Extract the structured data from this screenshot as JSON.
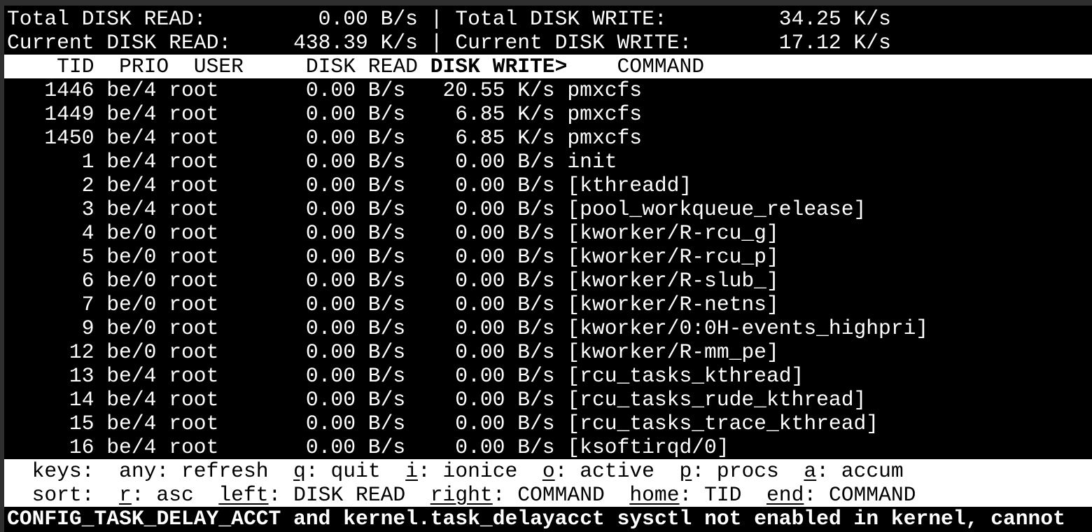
{
  "summary": {
    "total_read_label": "Total DISK READ:",
    "total_read": "0.00 B/s",
    "total_write_label": "Total DISK WRITE:",
    "total_write": "34.25 K/s",
    "current_read_label": "Current DISK READ:",
    "current_read": "438.39 K/s",
    "current_write_label": "Current DISK WRITE:",
    "current_write": "17.12 K/s",
    "separator": "|"
  },
  "columns": {
    "tid": "TID",
    "prio": "PRIO",
    "user": "USER",
    "disk_read": "DISK READ",
    "disk_write": "DISK WRITE>",
    "command": "COMMAND"
  },
  "sorted_column": "disk_write",
  "rows": [
    {
      "tid": "1446",
      "prio": "be/4",
      "user": "root",
      "disk_read": "0.00 B/s",
      "disk_write": "20.55 K/s",
      "command": "pmxcfs"
    },
    {
      "tid": "1449",
      "prio": "be/4",
      "user": "root",
      "disk_read": "0.00 B/s",
      "disk_write": "6.85 K/s",
      "command": "pmxcfs"
    },
    {
      "tid": "1450",
      "prio": "be/4",
      "user": "root",
      "disk_read": "0.00 B/s",
      "disk_write": "6.85 K/s",
      "command": "pmxcfs"
    },
    {
      "tid": "1",
      "prio": "be/4",
      "user": "root",
      "disk_read": "0.00 B/s",
      "disk_write": "0.00 B/s",
      "command": "init"
    },
    {
      "tid": "2",
      "prio": "be/4",
      "user": "root",
      "disk_read": "0.00 B/s",
      "disk_write": "0.00 B/s",
      "command": "[kthreadd]"
    },
    {
      "tid": "3",
      "prio": "be/4",
      "user": "root",
      "disk_read": "0.00 B/s",
      "disk_write": "0.00 B/s",
      "command": "[pool_workqueue_release]"
    },
    {
      "tid": "4",
      "prio": "be/0",
      "user": "root",
      "disk_read": "0.00 B/s",
      "disk_write": "0.00 B/s",
      "command": "[kworker/R-rcu_g]"
    },
    {
      "tid": "5",
      "prio": "be/0",
      "user": "root",
      "disk_read": "0.00 B/s",
      "disk_write": "0.00 B/s",
      "command": "[kworker/R-rcu_p]"
    },
    {
      "tid": "6",
      "prio": "be/0",
      "user": "root",
      "disk_read": "0.00 B/s",
      "disk_write": "0.00 B/s",
      "command": "[kworker/R-slub_]"
    },
    {
      "tid": "7",
      "prio": "be/0",
      "user": "root",
      "disk_read": "0.00 B/s",
      "disk_write": "0.00 B/s",
      "command": "[kworker/R-netns]"
    },
    {
      "tid": "9",
      "prio": "be/0",
      "user": "root",
      "disk_read": "0.00 B/s",
      "disk_write": "0.00 B/s",
      "command": "[kworker/0:0H-events_highpri]"
    },
    {
      "tid": "12",
      "prio": "be/0",
      "user": "root",
      "disk_read": "0.00 B/s",
      "disk_write": "0.00 B/s",
      "command": "[kworker/R-mm_pe]"
    },
    {
      "tid": "13",
      "prio": "be/4",
      "user": "root",
      "disk_read": "0.00 B/s",
      "disk_write": "0.00 B/s",
      "command": "[rcu_tasks_kthread]"
    },
    {
      "tid": "14",
      "prio": "be/4",
      "user": "root",
      "disk_read": "0.00 B/s",
      "disk_write": "0.00 B/s",
      "command": "[rcu_tasks_rude_kthread]"
    },
    {
      "tid": "15",
      "prio": "be/4",
      "user": "root",
      "disk_read": "0.00 B/s",
      "disk_write": "0.00 B/s",
      "command": "[rcu_tasks_trace_kthread]"
    },
    {
      "tid": "16",
      "prio": "be/4",
      "user": "root",
      "disk_read": "0.00 B/s",
      "disk_write": "0.00 B/s",
      "command": "[ksoftirqd/0]"
    }
  ],
  "footer": {
    "keys_label": "keys:",
    "keys": [
      {
        "key": "any",
        "label": ": refresh",
        "underline": false
      },
      {
        "key": "q",
        "label": ": quit",
        "underline": true
      },
      {
        "key": "i",
        "label": ": ionice",
        "underline": true
      },
      {
        "key": "o",
        "label": ": active",
        "underline": true
      },
      {
        "key": "p",
        "label": ": procs",
        "underline": true
      },
      {
        "key": "a",
        "label": ": accum",
        "underline": true
      }
    ],
    "sort_label": "sort:",
    "sort": [
      {
        "key": "r",
        "label": ": asc",
        "underline": true
      },
      {
        "key": "left",
        "label": ": DISK READ",
        "underline": true
      },
      {
        "key": "right",
        "label": ": COMMAND",
        "underline": true
      },
      {
        "key": "home",
        "label": ": TID",
        "underline": true
      },
      {
        "key": "end",
        "label": ": COMMAND",
        "underline": true
      }
    ]
  },
  "warning": "CONFIG_TASK_DELAY_ACCT and kernel.task_delayacct sysctl not enabled in kernel, cannot"
}
